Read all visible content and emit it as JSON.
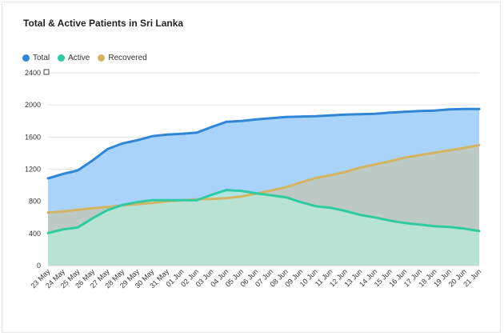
{
  "chart_data": {
    "type": "area",
    "title": "Total & Active Patients in Sri Lanka",
    "xlabel": "",
    "ylabel": "",
    "ylim": [
      0,
      2400
    ],
    "yticks": [
      0,
      400,
      800,
      1200,
      1600,
      2000,
      2400
    ],
    "grid": true,
    "legend_position": "top-left",
    "x_labels": [
      "23 May",
      "24 May",
      "25 May",
      "26 May",
      "27 May",
      "28 May",
      "29 May",
      "30 May",
      "31 May",
      "01 Jun",
      "02 Jun",
      "03 Jun",
      "04 Jun",
      "05 Jun",
      "06 Jun",
      "07 Jun",
      "08 Jun",
      "09 Jun",
      "10 Jun",
      "11 Jun",
      "12 Jun",
      "13 Jun",
      "14 Jun",
      "15 Jun",
      "16 Jun",
      "17 Jun",
      "18 Jun",
      "19 Jun",
      "20 Jun",
      "21 Jun"
    ],
    "series": [
      {
        "name": "Total",
        "color": "#2f86d6",
        "fill": "#a9d3fb",
        "values": [
          1085,
          1140,
          1185,
          1310,
          1450,
          1520,
          1560,
          1610,
          1630,
          1640,
          1655,
          1725,
          1790,
          1800,
          1820,
          1835,
          1850,
          1855,
          1860,
          1870,
          1880,
          1885,
          1890,
          1905,
          1915,
          1925,
          1930,
          1945,
          1950,
          1950
        ]
      },
      {
        "name": "Active",
        "color": "#2ecaa1",
        "fill": "#b6ead8",
        "values": [
          405,
          450,
          475,
          590,
          690,
          755,
          790,
          815,
          815,
          815,
          815,
          880,
          940,
          930,
          900,
          875,
          850,
          790,
          740,
          720,
          680,
          630,
          600,
          560,
          530,
          510,
          490,
          480,
          460,
          430
        ]
      },
      {
        "name": "Recovered",
        "color": "#d4b461",
        "fill": "#c3c7b6",
        "values": [
          660,
          675,
          695,
          715,
          730,
          750,
          765,
          780,
          800,
          815,
          825,
          830,
          840,
          860,
          895,
          935,
          975,
          1035,
          1090,
          1125,
          1165,
          1220,
          1260,
          1300,
          1345,
          1375,
          1405,
          1435,
          1465,
          1500
        ]
      }
    ]
  }
}
